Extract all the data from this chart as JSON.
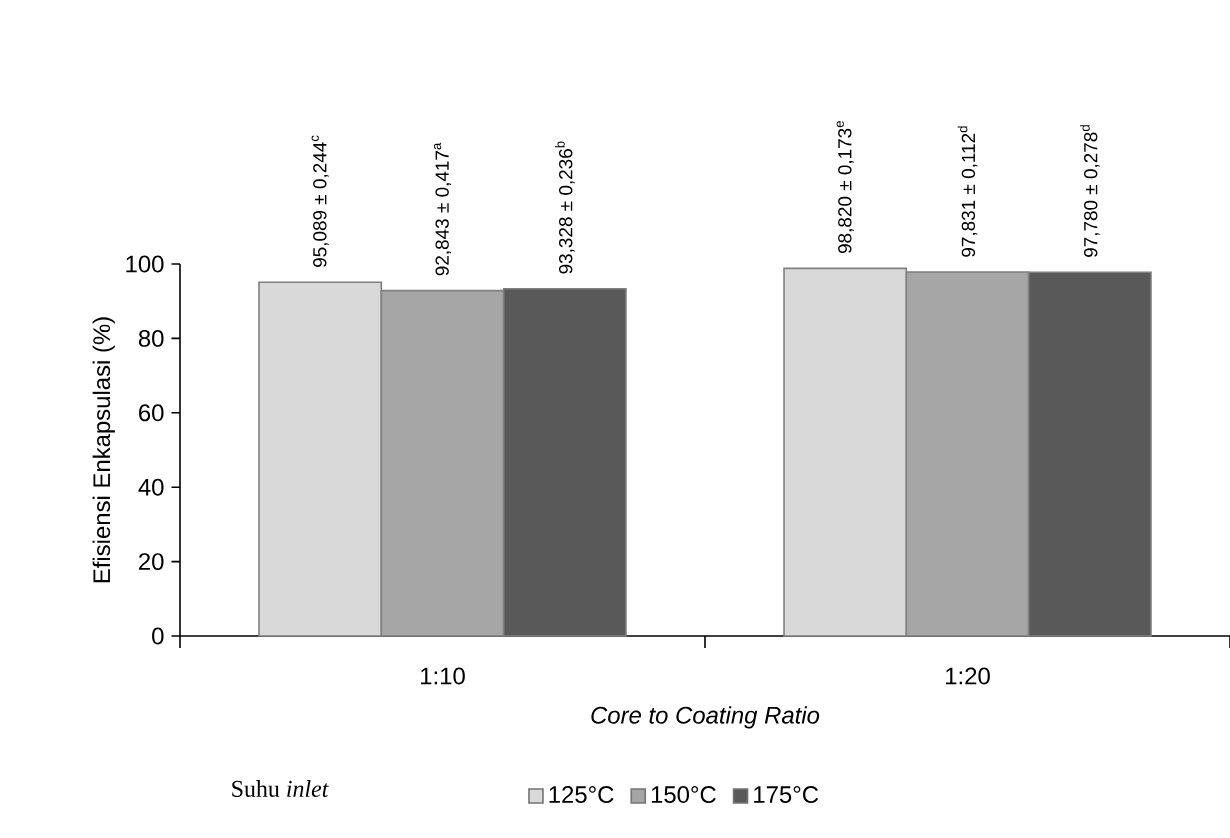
{
  "chart_data": {
    "type": "bar",
    "xlabel": "Core to Coating Ratio",
    "ylabel": "Efisiensi Enkapsulasi (%)",
    "categories": [
      "1:10",
      "1:20"
    ],
    "series": [
      {
        "name": "125°C",
        "color": "#d9d9d9",
        "values": [
          95.089,
          98.82
        ],
        "value_labels": [
          "95,089 ± 0,244$^{c}$",
          "98,820 ± 0,173$^{e}$"
        ]
      },
      {
        "name": "150°C",
        "color": "#a6a6a6",
        "values": [
          92.843,
          97.831
        ],
        "value_labels": [
          "92,843 ± 0,417$^{a}$",
          "97,831 ± 0,112$^{d}$"
        ]
      },
      {
        "name": "175°C",
        "color": "#595959",
        "values": [
          93.328,
          97.78
        ],
        "value_labels": [
          "93,328 ± 0,236$^{b}$",
          "97,780 ± 0,278$^{d}$"
        ]
      }
    ],
    "ylim": [
      0,
      100
    ],
    "yticks": [
      0,
      20,
      40,
      60,
      80,
      100
    ],
    "legend": "bottom",
    "legend_title": "Suhu *inlet*"
  }
}
